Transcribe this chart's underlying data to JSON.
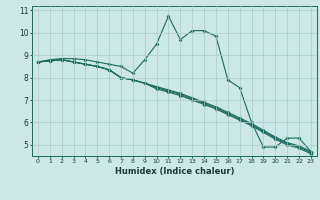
{
  "xlabel": "Humidex (Indice chaleur)",
  "xlim": [
    -0.5,
    23.5
  ],
  "ylim": [
    4.5,
    11.2
  ],
  "yticks": [
    5,
    6,
    7,
    8,
    9,
    10,
    11
  ],
  "xticks": [
    0,
    1,
    2,
    3,
    4,
    5,
    6,
    7,
    8,
    9,
    10,
    11,
    12,
    13,
    14,
    15,
    16,
    17,
    18,
    19,
    20,
    21,
    22,
    23
  ],
  "bg_color": "#cce8e4",
  "grid_color": "#aaccca",
  "line_color": "#1a6b5e",
  "lines": [
    [
      8.7,
      8.8,
      8.85,
      8.85,
      8.8,
      8.7,
      8.6,
      8.5,
      8.2,
      8.8,
      9.5,
      10.75,
      9.7,
      10.1,
      10.1,
      9.85,
      7.9,
      7.55,
      6.0,
      4.9,
      4.9,
      5.3,
      5.3,
      4.7
    ],
    [
      8.7,
      8.75,
      8.8,
      8.7,
      8.6,
      8.5,
      8.35,
      8.0,
      7.9,
      7.75,
      7.6,
      7.45,
      7.3,
      7.1,
      6.9,
      6.7,
      6.45,
      6.2,
      5.95,
      5.65,
      5.35,
      5.1,
      4.95,
      4.7
    ],
    [
      8.7,
      8.75,
      8.8,
      8.7,
      8.6,
      8.5,
      8.35,
      8.0,
      7.9,
      7.75,
      7.55,
      7.4,
      7.25,
      7.05,
      6.85,
      6.65,
      6.4,
      6.15,
      5.9,
      5.6,
      5.3,
      5.05,
      4.9,
      4.65
    ],
    [
      8.7,
      8.75,
      8.8,
      8.7,
      8.6,
      8.5,
      8.35,
      8.0,
      7.9,
      7.75,
      7.5,
      7.35,
      7.2,
      7.0,
      6.8,
      6.6,
      6.35,
      6.1,
      5.85,
      5.55,
      5.25,
      5.0,
      4.85,
      4.6
    ]
  ]
}
